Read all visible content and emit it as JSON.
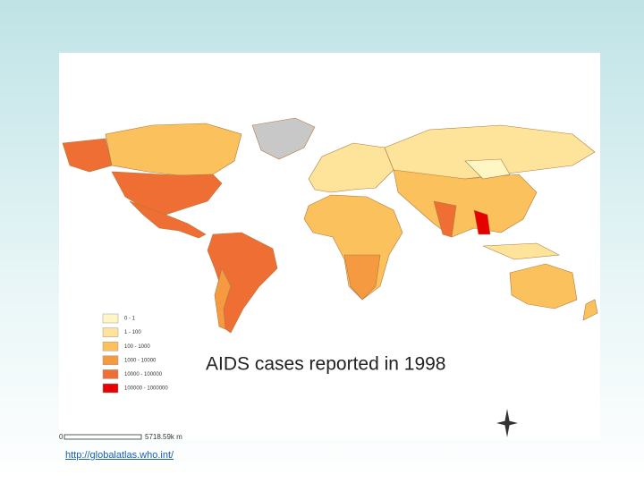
{
  "map": {
    "title": "AIDS cases reported in 1998",
    "legend": [
      {
        "label": "0 - 1",
        "color": "#fff6c4"
      },
      {
        "label": "1 - 100",
        "color": "#fde49a"
      },
      {
        "label": "100 - 1000",
        "color": "#fbc15c"
      },
      {
        "label": "1000 - 10000",
        "color": "#f59a40"
      },
      {
        "label": "10000 - 100000",
        "color": "#ee6e34"
      },
      {
        "label": "100000 - 1000000",
        "color": "#e60000"
      }
    ],
    "scale": {
      "start": "0",
      "end": "5718.59k m"
    }
  },
  "source_link": "http://globalatlas.who.int/"
}
